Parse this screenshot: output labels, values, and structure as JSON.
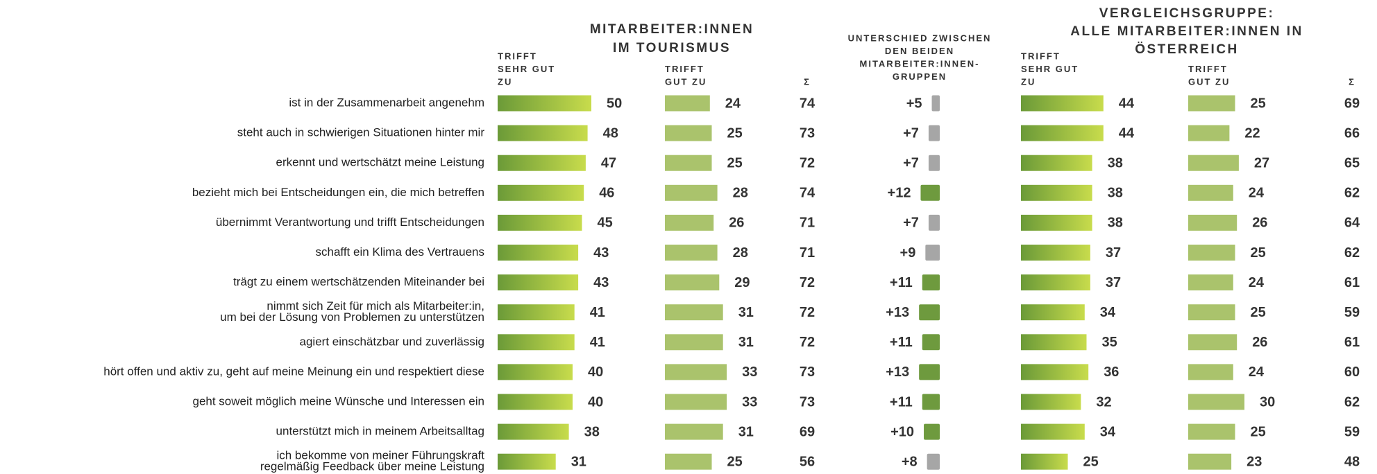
{
  "chart_data": {
    "type": "table-bars",
    "group1_title": [
      "MITARBEITER:INNEN",
      "IM TOURISMUS"
    ],
    "diff_title": [
      "UNTERSCHIED ZWISCHEN",
      "DEN BEIDEN",
      "MITARBEITER:INNEN-",
      "GRUPPEN"
    ],
    "group2_title": [
      "VERGLEICHSGRUPPE:",
      "ALLE MITARBEITER:INNEN IN",
      "ÖSTERREICH"
    ],
    "categories": [
      [
        "ist in der Zusammenarbeit angenehm"
      ],
      [
        "steht auch in schwierigen Situationen hinter mir"
      ],
      [
        "erkennt und wertschätzt meine Leistung"
      ],
      [
        "bezieht mich bei Entscheidungen ein, die mich betreffen"
      ],
      [
        "übernimmt Verantwortung und trifft Entscheidungen"
      ],
      [
        "schafft ein Klima des Vertrauens"
      ],
      [
        "trägt zu einem wertschätzenden Miteinander bei"
      ],
      [
        "nimmt sich Zeit für mich als Mitarbeiter:in,",
        "um bei der Lösung von Problemen zu unterstützen"
      ],
      [
        "agiert einschätzbar und zuverlässig"
      ],
      [
        "hört offen und aktiv zu, geht auf meine Meinung ein und respektiert diese"
      ],
      [
        "geht soweit möglich meine Wünsche und Interessen ein"
      ],
      [
        "unterstützt mich in meinem Arbeitsalltag"
      ],
      [
        "ich bekomme von meiner Führungskraft",
        "regelmäßig Feedback über meine Leistung"
      ]
    ],
    "series": [
      {
        "header": [
          "TRIFFT",
          "SEHR GUT",
          "ZU"
        ],
        "kind": "bar",
        "color": [
          "#6b9a38",
          "#c8dc4c"
        ],
        "values": [
          50,
          48,
          47,
          46,
          45,
          43,
          43,
          41,
          41,
          40,
          40,
          38,
          31
        ]
      },
      {
        "header": [
          "TRIFFT",
          "GUT ZU"
        ],
        "kind": "bar",
        "color": [
          "#aac36c",
          "#aac36c"
        ],
        "values": [
          24,
          25,
          25,
          28,
          26,
          28,
          29,
          31,
          31,
          33,
          33,
          31,
          25
        ]
      },
      {
        "header": [
          "Σ"
        ],
        "kind": "sum",
        "values": [
          74,
          73,
          72,
          74,
          71,
          71,
          72,
          72,
          72,
          73,
          73,
          69,
          56
        ]
      },
      {
        "kind": "diff",
        "values": [
          5,
          7,
          7,
          12,
          7,
          9,
          11,
          13,
          11,
          13,
          11,
          10,
          8
        ],
        "value_labels": [
          "+5",
          "+7",
          "+7",
          "+12",
          "+7",
          "+9",
          "+11",
          "+13",
          "+11",
          "+13",
          "+11",
          "+10",
          "+8"
        ],
        "colors": [
          "#a6a6a6",
          "#a6a6a6",
          "#a6a6a6",
          "#6e9a3e",
          "#a6a6a6",
          "#a6a6a6",
          "#6e9a3e",
          "#6e9a3e",
          "#6e9a3e",
          "#6e9a3e",
          "#6e9a3e",
          "#6e9a3e",
          "#a6a6a6"
        ]
      },
      {
        "header": [
          "TRIFFT",
          "SEHR GUT",
          "ZU"
        ],
        "kind": "bar",
        "color": [
          "#6b9a38",
          "#c8dc4c"
        ],
        "values": [
          44,
          44,
          38,
          38,
          38,
          37,
          37,
          34,
          35,
          36,
          32,
          34,
          25
        ]
      },
      {
        "header": [
          "TRIFFT",
          "GUT ZU"
        ],
        "kind": "bar",
        "color": [
          "#aac36c",
          "#aac36c"
        ],
        "values": [
          25,
          22,
          27,
          24,
          26,
          25,
          24,
          25,
          26,
          24,
          30,
          25,
          23
        ]
      },
      {
        "header": [
          "Σ"
        ],
        "kind": "sum",
        "values": [
          69,
          66,
          65,
          62,
          64,
          62,
          61,
          59,
          61,
          60,
          62,
          59,
          48
        ]
      }
    ]
  }
}
